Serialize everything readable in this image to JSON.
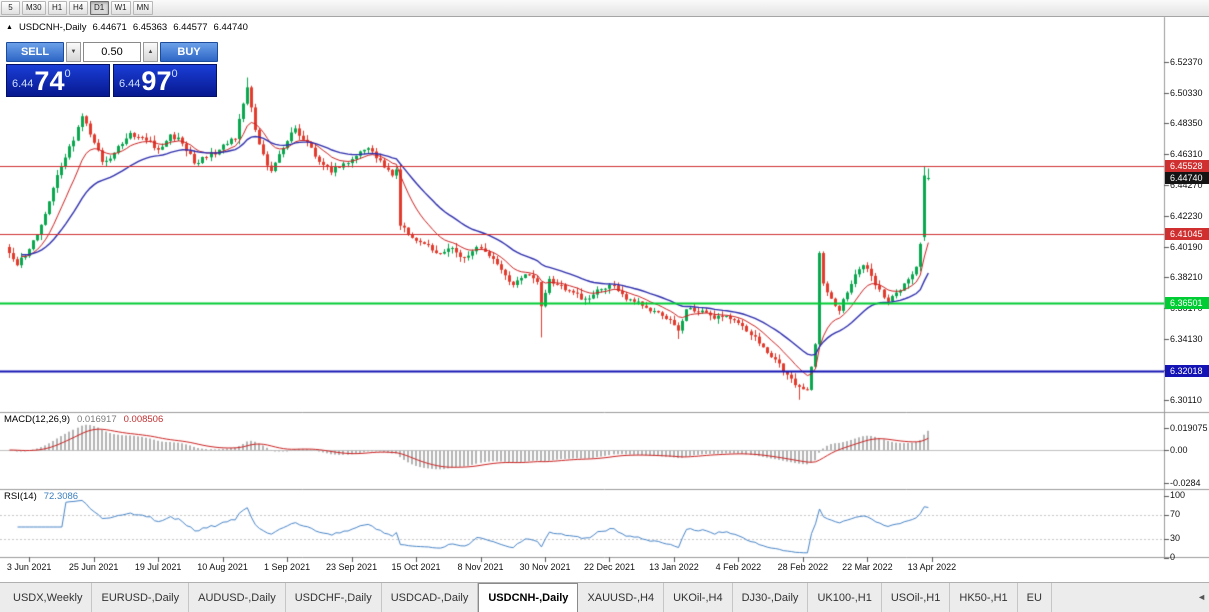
{
  "icons": {
    "symbol_marker": "▲",
    "spinner_up": "▲",
    "spinner_down": "▼",
    "tab_scroll_left": "◄"
  },
  "toolbar": {
    "timeframes": [
      {
        "label": "5",
        "active": false
      },
      {
        "label": "M30",
        "active": false
      },
      {
        "label": "H1",
        "active": false
      },
      {
        "label": "H4",
        "active": false
      },
      {
        "label": "D1",
        "active": true
      },
      {
        "label": "W1",
        "active": false
      },
      {
        "label": "MN",
        "active": false
      }
    ]
  },
  "chart_header": {
    "symbol": "USDCNH-,Daily",
    "open": "6.44671",
    "high": "6.45363",
    "low": "6.44577",
    "close": "6.44740"
  },
  "trade_panel": {
    "sell_label": "SELL",
    "buy_label": "BUY",
    "lot": "0.50",
    "sell_price": {
      "prefix": "6.44",
      "pips": "74",
      "pipette": "0"
    },
    "buy_price": {
      "prefix": "6.44",
      "pips": "97",
      "pipette": "0"
    }
  },
  "indicators": {
    "macd": {
      "label": "MACD(12,26,9)",
      "value": "0.016917",
      "signal": "0.008506"
    },
    "rsi": {
      "label": "RSI(14)",
      "value": "72.3086"
    }
  },
  "levels": [
    {
      "price": 6.45528,
      "label": "6.45528",
      "color": "#d02f2f",
      "width": 1
    },
    {
      "price": 6.41045,
      "label": "6.41045",
      "color": "#d02f2f",
      "width": 1
    },
    {
      "price": 6.36501,
      "label": "6.36501",
      "color": "#00cc33",
      "width": 2
    },
    {
      "price": 6.32018,
      "label": "6.32018",
      "color": "#1414b4",
      "width": 2
    }
  ],
  "current_price": {
    "price": 6.4474,
    "label": "6.44740",
    "color": "#141414"
  },
  "axes": {
    "price_ticks": [
      {
        "price": 6.5237,
        "label": "6.52370"
      },
      {
        "price": 6.5033,
        "label": "6.50330"
      },
      {
        "price": 6.4835,
        "label": "6.48350"
      },
      {
        "price": 6.4631,
        "label": "6.46310"
      },
      {
        "price": 6.4427,
        "label": "6.44270"
      },
      {
        "price": 6.4223,
        "label": "6.42230"
      },
      {
        "price": 6.4019,
        "label": "6.40190"
      },
      {
        "price": 6.3821,
        "label": "6.38210"
      },
      {
        "price": 6.3617,
        "label": "6.36170"
      },
      {
        "price": 6.3413,
        "label": "6.34130"
      },
      {
        "price": 6.3209,
        "label": "6.32090"
      },
      {
        "price": 6.3011,
        "label": "6.30110"
      }
    ],
    "macd_ticks": [
      {
        "value": 0.019075,
        "label": "0.019075"
      },
      {
        "value": 0.0,
        "label": "0.00"
      },
      {
        "value": -0.0284,
        "label": "-0.0284"
      }
    ],
    "rsi_ticks": [
      {
        "value": 100,
        "label": "100"
      },
      {
        "value": 70,
        "label": "70"
      },
      {
        "value": 30,
        "label": "30"
      },
      {
        "value": 0,
        "label": "0"
      }
    ],
    "dates": [
      {
        "day": 5,
        "label": "3 Jun 2021"
      },
      {
        "day": 21,
        "label": "25 Jun 2021"
      },
      {
        "day": 37,
        "label": "19 Jul 2021"
      },
      {
        "day": 53,
        "label": "10 Aug 2021"
      },
      {
        "day": 69,
        "label": "1 Sep 2021"
      },
      {
        "day": 85,
        "label": "23 Sep 2021"
      },
      {
        "day": 101,
        "label": "15 Oct 2021"
      },
      {
        "day": 117,
        "label": "8 Nov 2021"
      },
      {
        "day": 133,
        "label": "30 Nov 2021"
      },
      {
        "day": 149,
        "label": "22 Dec 2021"
      },
      {
        "day": 165,
        "label": "13 Jan 2022"
      },
      {
        "day": 181,
        "label": "4 Feb 2022"
      },
      {
        "day": 197,
        "label": "28 Feb 2022"
      },
      {
        "day": 213,
        "label": "22 Mar 2022"
      },
      {
        "day": 229,
        "label": "13 Apr 2022"
      }
    ]
  },
  "tabs": [
    {
      "label": "USDX,Weekly",
      "active": false
    },
    {
      "label": "EURUSD-,Daily",
      "active": false
    },
    {
      "label": "AUDUSD-,Daily",
      "active": false
    },
    {
      "label": "USDCHF-,Daily",
      "active": false
    },
    {
      "label": "USDCAD-,Daily",
      "active": false
    },
    {
      "label": "USDCNH-,Daily",
      "active": true
    },
    {
      "label": "XAUUSD-,H4",
      "active": false
    },
    {
      "label": "UKOil-,H4",
      "active": false
    },
    {
      "label": "DJ30-,Daily",
      "active": false
    },
    {
      "label": "UK100-,H1",
      "active": false
    },
    {
      "label": "USOil-,H1",
      "active": false
    },
    {
      "label": "HK50-,H1",
      "active": false
    },
    {
      "label": "EU",
      "active": false
    }
  ],
  "chart_data": {
    "type": "candlestick",
    "symbol": "USDCNH",
    "timeframe": "Daily",
    "title": "USDCNH-,Daily",
    "x_range": [
      "3 Jun 2021",
      "13 Apr 2022"
    ],
    "ylim": [
      6.296,
      6.534
    ],
    "num_candles": 229,
    "noise": 0.004,
    "ohlc_current": {
      "open": 6.44671,
      "high": 6.45363,
      "low": 6.44577,
      "close": 6.4474
    },
    "price_path": [
      [
        0,
        6.398
      ],
      [
        2,
        6.39
      ],
      [
        4,
        6.396
      ],
      [
        7,
        6.41
      ],
      [
        10,
        6.432
      ],
      [
        13,
        6.455
      ],
      [
        16,
        6.472
      ],
      [
        18,
        6.488
      ],
      [
        20,
        6.476
      ],
      [
        23,
        6.458
      ],
      [
        26,
        6.464
      ],
      [
        30,
        6.477
      ],
      [
        34,
        6.472
      ],
      [
        37,
        6.466
      ],
      [
        40,
        6.476
      ],
      [
        43,
        6.47
      ],
      [
        46,
        6.457
      ],
      [
        49,
        6.461
      ],
      [
        52,
        6.466
      ],
      [
        56,
        6.473
      ],
      [
        59,
        6.507
      ],
      [
        61,
        6.479
      ],
      [
        63,
        6.463
      ],
      [
        65,
        6.452
      ],
      [
        68,
        6.467
      ],
      [
        71,
        6.48
      ],
      [
        74,
        6.471
      ],
      [
        77,
        6.458
      ],
      [
        80,
        6.451
      ],
      [
        83,
        6.457
      ],
      [
        86,
        6.462
      ],
      [
        89,
        6.467
      ],
      [
        92,
        6.459
      ],
      [
        95,
        6.449
      ],
      [
        96,
        6.453
      ],
      [
        97,
        6.416
      ],
      [
        100,
        6.408
      ],
      [
        103,
        6.404
      ],
      [
        106,
        6.398
      ],
      [
        109,
        6.401
      ],
      [
        113,
        6.395
      ],
      [
        116,
        6.402
      ],
      [
        119,
        6.396
      ],
      [
        122,
        6.387
      ],
      [
        125,
        6.377
      ],
      [
        128,
        6.384
      ],
      [
        131,
        6.379
      ],
      [
        132,
        6.363
      ],
      [
        134,
        6.381
      ],
      [
        137,
        6.377
      ],
      [
        140,
        6.372
      ],
      [
        143,
        6.368
      ],
      [
        146,
        6.374
      ],
      [
        149,
        6.377
      ],
      [
        152,
        6.371
      ],
      [
        155,
        6.366
      ],
      [
        158,
        6.362
      ],
      [
        161,
        6.359
      ],
      [
        164,
        6.354
      ],
      [
        166,
        6.347
      ],
      [
        168,
        6.361
      ],
      [
        171,
        6.359
      ],
      [
        174,
        6.357
      ],
      [
        177,
        6.356
      ],
      [
        181,
        6.352
      ],
      [
        184,
        6.344
      ],
      [
        187,
        6.336
      ],
      [
        190,
        6.328
      ],
      [
        193,
        6.318
      ],
      [
        196,
        6.31
      ],
      [
        198,
        6.308
      ],
      [
        200,
        6.338
      ],
      [
        201,
        6.398
      ],
      [
        202,
        6.378
      ],
      [
        204,
        6.368
      ],
      [
        206,
        6.36
      ],
      [
        208,
        6.372
      ],
      [
        210,
        6.384
      ],
      [
        212,
        6.39
      ],
      [
        214,
        6.383
      ],
      [
        216,
        6.374
      ],
      [
        218,
        6.366
      ],
      [
        220,
        6.372
      ],
      [
        222,
        6.378
      ],
      [
        224,
        6.384
      ],
      [
        225,
        6.389
      ],
      [
        226,
        6.404
      ],
      [
        227,
        6.449
      ],
      [
        228,
        6.4474
      ]
    ],
    "last_candles": [
      [
        6.4085,
        6.4553,
        6.406,
        6.449
      ],
      [
        6.44671,
        6.45363,
        6.44577,
        6.4474
      ]
    ],
    "wick_low_overrides": [
      [
        132,
        6.3425
      ],
      [
        166,
        6.3415
      ],
      [
        196,
        6.3015
      ]
    ],
    "wick_high_overrides": [
      [
        59,
        6.5135
      ]
    ],
    "overlays": [
      {
        "type": "ma",
        "period": 10,
        "color": "#cc2222"
      },
      {
        "type": "ma",
        "period": 25,
        "color": "#2f2fae"
      }
    ],
    "indicators": {
      "macd": {
        "params": [
          12,
          26,
          9
        ],
        "current_main": 0.016917,
        "current_signal": 0.008506,
        "axis_min": -0.0284,
        "axis_max": 0.019075
      },
      "rsi": {
        "period": 14,
        "current": 72.3086,
        "levels": [
          30,
          70
        ]
      }
    },
    "colors": {
      "up": "#0aa74f",
      "down": "#e23b2e",
      "macd_hist": "#b4b4b4",
      "macd_signal": "#cc2222",
      "rsi": "#4a86c8"
    }
  }
}
